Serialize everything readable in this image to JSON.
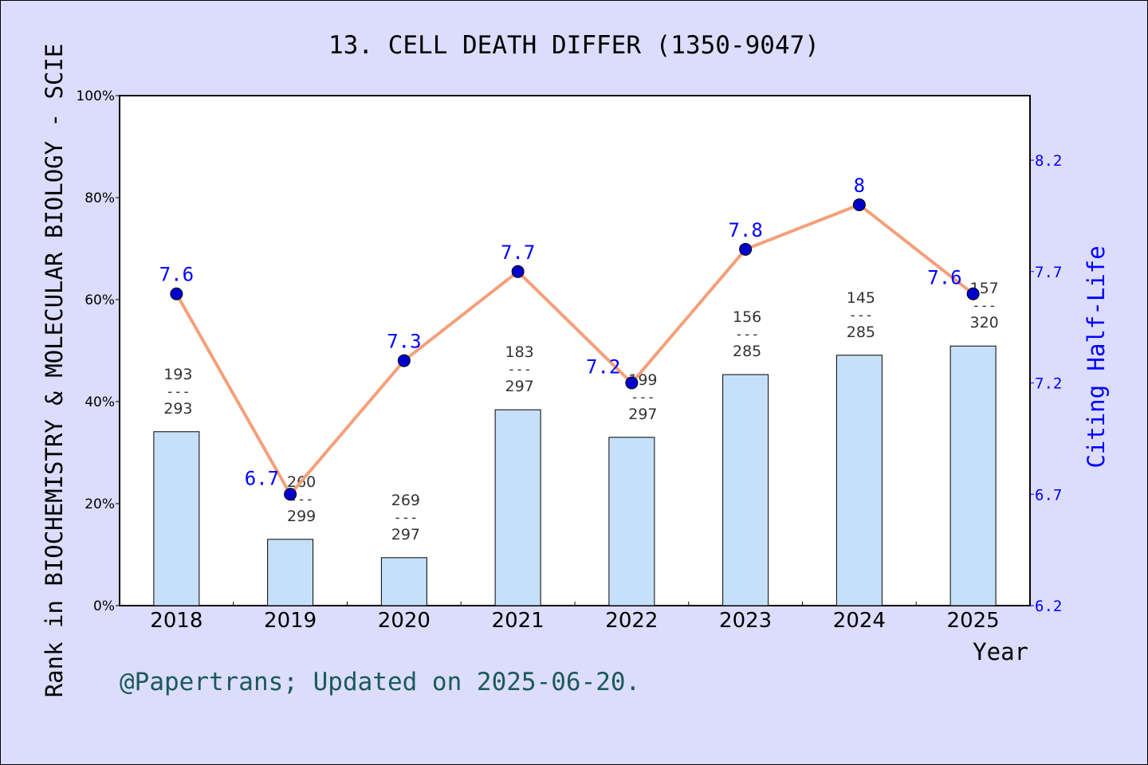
{
  "chart_data": {
    "type": "bar+line",
    "title": "13. CELL DEATH DIFFER (1350-9047)",
    "xlabel": "Year",
    "ylabel_left": "Rank in BIOCHEMISTRY & MOLECULAR BIOLOGY - SCIE",
    "ylabel_right": "Citing Half-Life",
    "categories": [
      "2018",
      "2019",
      "2020",
      "2021",
      "2022",
      "2023",
      "2024",
      "2025"
    ],
    "left_axis": {
      "range": [
        0,
        100
      ],
      "ticks": [
        "0%",
        "20%",
        "40%",
        "60%",
        "80%",
        "100%"
      ],
      "tick_values": [
        0,
        20,
        40,
        60,
        80,
        100
      ]
    },
    "right_axis": {
      "range": [
        6.2,
        8.49
      ],
      "ticks": [
        "6.2",
        "6.7",
        "7.2",
        "7.7",
        "8.2"
      ],
      "tick_values": [
        6.2,
        6.7,
        7.2,
        7.7,
        8.2
      ]
    },
    "bars": {
      "ranks": [
        193,
        260,
        269,
        183,
        199,
        156,
        145,
        157
      ],
      "totals": [
        293,
        299,
        297,
        297,
        297,
        285,
        285,
        320
      ],
      "percentile_values": [
        34.1,
        13.0,
        9.4,
        38.4,
        33.0,
        45.3,
        49.1,
        50.9
      ],
      "separator": "---",
      "color": "#c5e0f8"
    },
    "line": {
      "values": [
        7.6,
        6.7,
        7.3,
        7.7,
        7.2,
        7.8,
        8.0,
        7.6
      ],
      "labels": [
        "7.6",
        "6.7",
        "7.3",
        "7.7",
        "7.2",
        "7.8",
        "8",
        "7.6"
      ],
      "line_color": "#f4a07a",
      "marker_color": "#0000cc",
      "label_color": "#0000ff"
    },
    "grid": false
  },
  "footer": {
    "credit": "@Papertrans; Updated on 2025-06-20."
  }
}
